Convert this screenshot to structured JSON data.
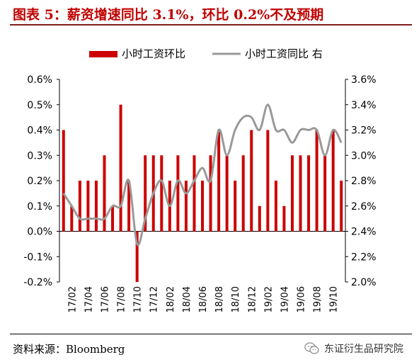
{
  "header": {
    "title": "图表 5：薪资增速同比 3.1%，环比 0.2%不及预期"
  },
  "footer": {
    "source": "资料来源：Bloomberg",
    "watermark": "东证衍生品研究院",
    "watermark_icon": "wechat-icon"
  },
  "chart_data": {
    "type": "bar+line",
    "legend": {
      "placement": "top",
      "bar_label": "小时工资环比",
      "line_label": "小时工资同比  右"
    },
    "colors": {
      "bar": "#cc0000",
      "line": "#999999"
    },
    "left_axis": {
      "min": -0.2,
      "max": 0.6,
      "ticks": [
        "-0.2%",
        "-0.1%",
        "0.0%",
        "0.1%",
        "0.2%",
        "0.3%",
        "0.4%",
        "0.5%",
        "0.6%"
      ]
    },
    "right_axis": {
      "min": 2.0,
      "max": 3.6,
      "ticks": [
        "2.0%",
        "2.2%",
        "2.4%",
        "2.6%",
        "2.8%",
        "3.0%",
        "3.2%",
        "3.4%",
        "3.6%"
      ]
    },
    "x_tick_labels": [
      "17/02",
      "17/04",
      "17/06",
      "17/08",
      "17/10",
      "17/12",
      "18/02",
      "18/04",
      "18/06",
      "18/08",
      "18/10",
      "18/12",
      "19/02",
      "19/04",
      "19/06",
      "19/08",
      "19/10"
    ],
    "periods": [
      "17/01",
      "17/02",
      "17/03",
      "17/04",
      "17/05",
      "17/06",
      "17/07",
      "17/08",
      "17/09",
      "17/10",
      "17/11",
      "17/12",
      "18/01",
      "18/02",
      "18/03",
      "18/04",
      "18/05",
      "18/06",
      "18/07",
      "18/08",
      "18/09",
      "18/10",
      "18/11",
      "18/12",
      "19/01",
      "19/02",
      "19/03",
      "19/04",
      "19/05",
      "19/06",
      "19/07",
      "19/08",
      "19/09",
      "19/10",
      "19/11"
    ],
    "series": [
      {
        "name": "小时工资环比",
        "axis": "left",
        "kind": "bar",
        "values": [
          0.4,
          0.1,
          0.2,
          0.2,
          0.2,
          0.3,
          0.1,
          0.5,
          0.2,
          -0.2,
          0.3,
          0.3,
          0.3,
          0.2,
          0.3,
          0.2,
          0.3,
          0.2,
          0.3,
          0.4,
          0.3,
          0.2,
          0.3,
          0.4,
          0.1,
          0.4,
          0.2,
          0.1,
          0.3,
          0.3,
          0.3,
          0.4,
          0.3,
          0.4,
          0.2
        ]
      },
      {
        "name": "小时工资同比",
        "axis": "right",
        "kind": "line",
        "values": [
          2.7,
          2.6,
          2.5,
          2.5,
          2.5,
          2.5,
          2.6,
          2.6,
          2.8,
          2.3,
          2.5,
          2.7,
          2.8,
          2.6,
          2.8,
          2.7,
          2.8,
          2.9,
          2.8,
          3.2,
          3.0,
          3.2,
          3.3,
          3.3,
          3.2,
          3.4,
          3.2,
          3.2,
          3.1,
          3.2,
          3.2,
          3.2,
          3.0,
          3.2,
          3.1
        ]
      }
    ]
  }
}
